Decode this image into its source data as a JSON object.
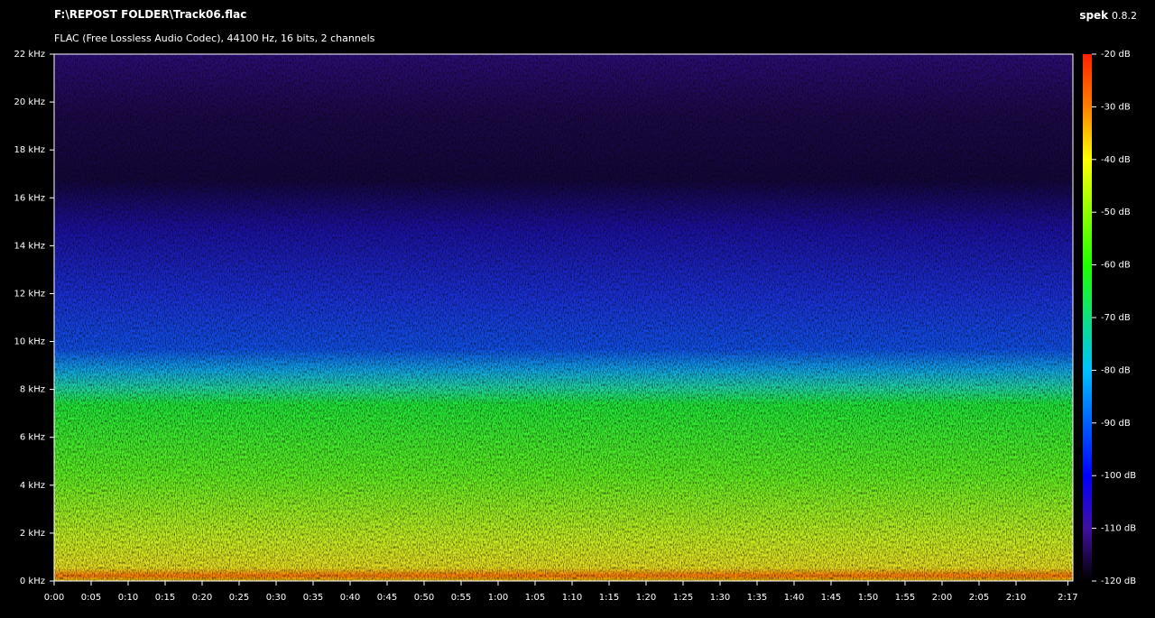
{
  "header": {
    "title": "F:\\REPOST FOLDER\\Track06.flac",
    "subtitle": "FLAC (Free Lossless Audio Codec), 44100 Hz, 16 bits, 2 channels",
    "app": "spek",
    "version": "0.8.2"
  },
  "frequency_axis": {
    "labels": [
      "22 kHz",
      "20 kHz",
      "18 kHz",
      "16 kHz",
      "14 kHz",
      "12 kHz",
      "10 kHz",
      "8 kHz",
      "6 kHz",
      "4 kHz",
      "2 kHz",
      "0 kHz"
    ]
  },
  "time_axis": {
    "labels": [
      "0:00",
      "0:05",
      "0:10",
      "0:15",
      "0:20",
      "0:25",
      "0:30",
      "0:35",
      "0:40",
      "0:45",
      "0:50",
      "0:55",
      "1:00",
      "1:05",
      "1:10",
      "1:15",
      "1:20",
      "1:25",
      "1:30",
      "1:35",
      "1:40",
      "1:45",
      "1:50",
      "1:55",
      "2:00",
      "2:05",
      "2:10",
      "2:17"
    ]
  },
  "level_axis": {
    "labels": [
      "-20 dB",
      "-30 dB",
      "-40 dB",
      "-50 dB",
      "-60 dB",
      "-70 dB",
      "-80 dB",
      "-90 dB",
      "-100 dB",
      "-110 dB",
      "-120 dB"
    ]
  }
}
